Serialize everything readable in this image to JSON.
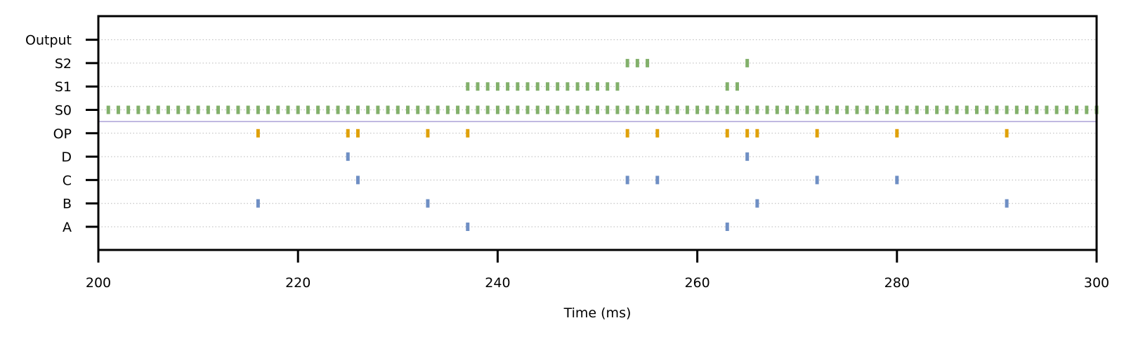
{
  "chart_data": {
    "type": "scatter",
    "style": "spike raster",
    "title": "",
    "xlabel": "Time (ms)",
    "ylabel": "",
    "xlim": [
      200,
      300
    ],
    "x_ticks": [
      200,
      220,
      240,
      260,
      280,
      300
    ],
    "categories": [
      "A",
      "B",
      "C",
      "D",
      "OP",
      "S0",
      "S1",
      "S2",
      "Output"
    ],
    "grid": "dotted horizontal lines per row",
    "separator_between": [
      "OP",
      "S0"
    ],
    "colors": {
      "input": "#6f8fc4",
      "op": "#e0a10a",
      "state": "#82b06b",
      "grid": "#b8b8b8",
      "separator": "#9b8fcf"
    },
    "series": [
      {
        "row": "A",
        "color_key": "input",
        "x": [
          237,
          263
        ]
      },
      {
        "row": "B",
        "color_key": "input",
        "x": [
          216,
          233,
          266,
          291
        ]
      },
      {
        "row": "C",
        "color_key": "input",
        "x": [
          226,
          253,
          256,
          272,
          280
        ]
      },
      {
        "row": "D",
        "color_key": "input",
        "x": [
          225,
          265
        ]
      },
      {
        "row": "OP",
        "color_key": "op",
        "x": [
          216,
          225,
          226,
          233,
          237,
          253,
          256,
          263,
          265,
          266,
          272,
          280,
          291
        ]
      },
      {
        "row": "S0",
        "color_key": "state",
        "x": [
          201,
          202,
          203,
          204,
          205,
          206,
          207,
          208,
          209,
          210,
          211,
          212,
          213,
          214,
          215,
          216,
          217,
          218,
          219,
          220,
          221,
          222,
          223,
          224,
          225,
          226,
          227,
          228,
          229,
          230,
          231,
          232,
          233,
          234,
          235,
          236,
          237,
          238,
          239,
          240,
          241,
          242,
          243,
          244,
          245,
          246,
          247,
          248,
          249,
          250,
          251,
          252,
          253,
          254,
          255,
          256,
          257,
          258,
          259,
          260,
          261,
          262,
          263,
          264,
          265,
          266,
          267,
          268,
          269,
          270,
          271,
          272,
          273,
          274,
          275,
          276,
          277,
          278,
          279,
          280,
          281,
          282,
          283,
          284,
          285,
          286,
          287,
          288,
          289,
          290,
          291,
          292,
          293,
          294,
          295,
          296,
          297,
          298,
          299,
          300
        ]
      },
      {
        "row": "S1",
        "color_key": "state",
        "x": [
          237,
          238,
          239,
          240,
          241,
          242,
          243,
          244,
          245,
          246,
          247,
          248,
          249,
          250,
          251,
          252,
          263,
          264
        ]
      },
      {
        "row": "S2",
        "color_key": "state",
        "x": [
          253,
          254,
          255,
          265
        ]
      },
      {
        "row": "Output",
        "color_key": "state",
        "x": []
      }
    ]
  }
}
